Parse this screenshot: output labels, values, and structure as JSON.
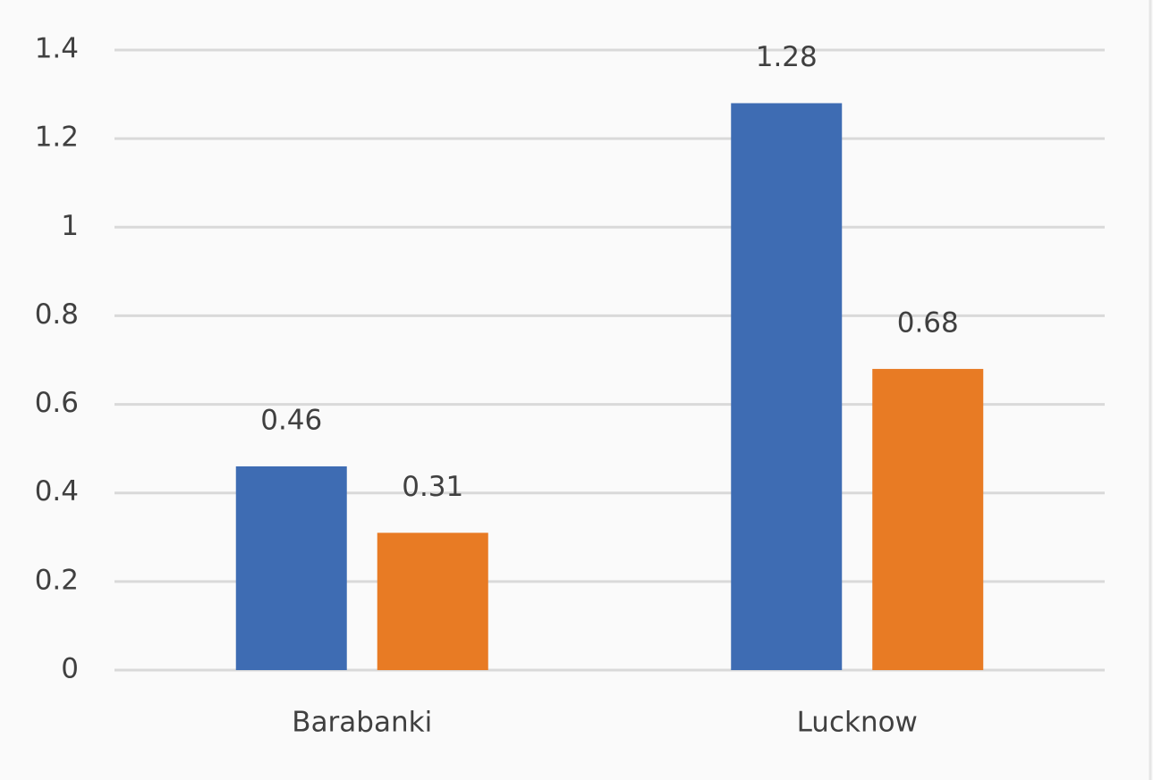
{
  "chart_data": {
    "type": "bar",
    "categories": [
      "Barabanki",
      "Lucknow"
    ],
    "series": [
      {
        "color": "#3e6cb3",
        "values": [
          0.46,
          1.28
        ]
      },
      {
        "color": "#e87b24",
        "values": [
          0.31,
          0.68
        ]
      }
    ],
    "ylim": [
      0,
      1.4
    ],
    "yticks": [
      0,
      0.2,
      0.4,
      0.6,
      0.8,
      1,
      1.2,
      1.4
    ],
    "grid": true,
    "data_labels": true
  }
}
